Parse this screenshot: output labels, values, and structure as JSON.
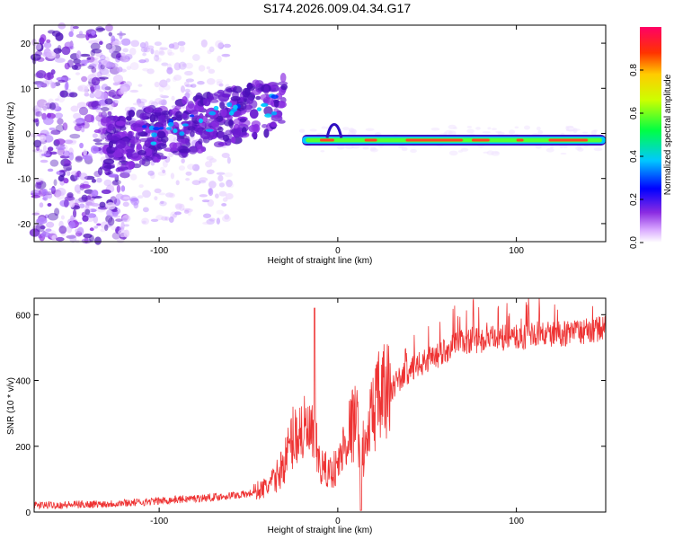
{
  "title": "S174.2026.009.04.34.G17",
  "colors": {
    "snr_line": "#ee3333",
    "scatter_purple": "#7a20e0",
    "axis": "#000000"
  },
  "chart_data": [
    {
      "type": "heatmap",
      "title": "S174.2026.009.04.34.G17",
      "xlabel": "Height of straight line (km)",
      "ylabel": "Frequency (Hz)",
      "xlim": [
        -170,
        150
      ],
      "ylim": [
        -24,
        24
      ],
      "x_ticks": [
        -100,
        0,
        100
      ],
      "x_tick_labels": [
        "-100",
        "0",
        "100"
      ],
      "y_ticks": [
        20,
        10,
        0,
        -10,
        -20
      ],
      "y_tick_labels": [
        "20",
        "10",
        "0",
        "-10",
        "-20"
      ],
      "colorbar": {
        "label": "Normalized spectral amplitude",
        "range": [
          0,
          1
        ],
        "ticks": [
          0.0,
          0.2,
          0.4,
          0.6,
          0.8
        ],
        "tick_labels": [
          "0.0",
          "0.2",
          "0.4",
          "0.6",
          "0.8"
        ]
      },
      "features": [
        {
          "name": "diffuse noise",
          "x_range": [
            -170,
            -120
          ],
          "y_range": [
            -24,
            24
          ],
          "amplitude": 0.1
        },
        {
          "name": "rising band",
          "x_from": -130,
          "x_to": -30,
          "y_from": -3,
          "y_to": 8,
          "amplitude": 0.3
        },
        {
          "name": "carrier line",
          "x_from": -20,
          "x_to": 150,
          "y": -1.5,
          "amplitude": 0.9
        }
      ]
    },
    {
      "type": "line",
      "xlabel": "Height of straight line (km)",
      "ylabel": "SNR (10 * v/v)",
      "xlim": [
        -170,
        150
      ],
      "ylim": [
        0,
        650
      ],
      "x_ticks": [
        -100,
        0,
        100
      ],
      "x_tick_labels": [
        "-100",
        "0",
        "100"
      ],
      "y_ticks": [
        0,
        200,
        400,
        600
      ],
      "y_tick_labels": [
        "0",
        "200",
        "400",
        "600"
      ],
      "series": [
        {
          "name": "SNR",
          "x": [
            -170,
            -150,
            -130,
            -110,
            -90,
            -70,
            -50,
            -40,
            -35,
            -30,
            -25,
            -20,
            -15,
            -13,
            -10,
            -5,
            0,
            5,
            10,
            15,
            20,
            25,
            30,
            40,
            50,
            60,
            70,
            80,
            90,
            100,
            110,
            120,
            130,
            140,
            150
          ],
          "y": [
            20,
            22,
            25,
            30,
            38,
            45,
            55,
            75,
            100,
            150,
            230,
            250,
            230,
            220,
            140,
            120,
            140,
            230,
            280,
            180,
            320,
            350,
            380,
            430,
            460,
            490,
            520,
            520,
            530,
            530,
            540,
            540,
            545,
            550,
            560
          ]
        }
      ]
    }
  ]
}
